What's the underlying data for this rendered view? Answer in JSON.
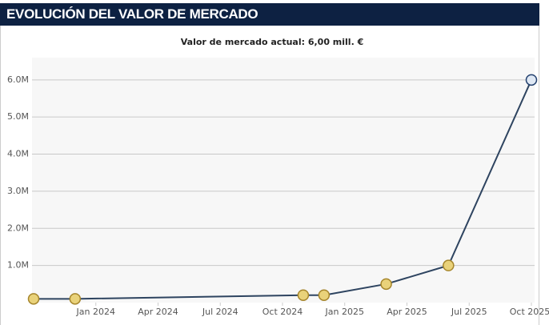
{
  "chart_data": {
    "type": "line",
    "title": "EVOLUCIÓN DEL VALOR DE MERCADO",
    "subtitle": "Valor de mercado actual: 6,00 mill. €",
    "x": [
      "2023-10",
      "2023-12",
      "2024-11",
      "2024-12",
      "2025-03",
      "2025-06",
      "2025-10"
    ],
    "series": [
      {
        "name": "Valor de mercado",
        "color": "#2e4460",
        "values": [
          0.1,
          0.1,
          0.2,
          0.2,
          0.5,
          1.0,
          6.0
        ]
      }
    ],
    "xlim": [
      "2023-10",
      "2025-10"
    ],
    "xticks": [
      {
        "value": "2024-01",
        "label": "Jan 2024"
      },
      {
        "value": "2024-04",
        "label": "Apr 2024"
      },
      {
        "value": "2024-07",
        "label": "Jul 2024"
      },
      {
        "value": "2024-10",
        "label": "Oct 2024"
      },
      {
        "value": "2025-01",
        "label": "Jan 2025"
      },
      {
        "value": "2025-04",
        "label": "Apr 2025"
      },
      {
        "value": "2025-07",
        "label": "Jul 2025"
      },
      {
        "value": "2025-10",
        "label": "Oct 2025"
      }
    ],
    "ylim": [
      0,
      6.6
    ],
    "yticks": [
      {
        "value": 1,
        "label": "1.0M"
      },
      {
        "value": 2,
        "label": "2.0M"
      },
      {
        "value": 3,
        "label": "3.0M"
      },
      {
        "value": 4,
        "label": "4.0M"
      },
      {
        "value": 5,
        "label": "5.0M"
      },
      {
        "value": 6,
        "label": "6.0M"
      }
    ],
    "grid": true
  }
}
